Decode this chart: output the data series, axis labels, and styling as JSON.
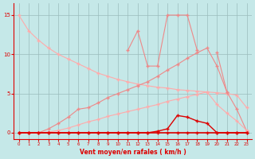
{
  "x": [
    0,
    1,
    2,
    3,
    4,
    5,
    6,
    7,
    8,
    9,
    10,
    11,
    12,
    13,
    14,
    15,
    16,
    17,
    18,
    19,
    20,
    21,
    22,
    23
  ],
  "line_top": [
    15,
    13,
    11.8,
    10.8,
    10.0,
    9.4,
    8.8,
    8.2,
    7.6,
    7.2,
    6.8,
    6.5,
    6.2,
    6.0,
    5.8,
    5.7,
    5.5,
    5.4,
    5.3,
    5.2,
    5.1,
    5.0,
    4.8,
    3.2
  ],
  "line_spiky": [
    null,
    null,
    null,
    null,
    null,
    null,
    null,
    null,
    null,
    null,
    null,
    10.5,
    13.0,
    8.5,
    8.5,
    15.0,
    15.0,
    15.0,
    10.5,
    null,
    10.2,
    5.2,
    null,
    null
  ],
  "line_inc1": [
    0,
    0,
    0,
    0.5,
    1.2,
    2.0,
    3.0,
    3.2,
    3.8,
    4.5,
    5.0,
    5.5,
    6.0,
    6.5,
    7.2,
    8.0,
    8.7,
    9.5,
    10.2,
    10.8,
    8.5,
    5.2,
    3.0,
    0.2
  ],
  "line_inc2": [
    0,
    0,
    0,
    0.1,
    0.3,
    0.6,
    1.0,
    1.4,
    1.7,
    2.1,
    2.4,
    2.7,
    3.0,
    3.3,
    3.6,
    4.0,
    4.3,
    4.6,
    4.9,
    5.2,
    3.6,
    2.5,
    1.5,
    0.3
  ],
  "line_near_zero": [
    0,
    0,
    0,
    0,
    0,
    0,
    0,
    0,
    0,
    0,
    0,
    0,
    0,
    0,
    0.2,
    0.5,
    2.2,
    2.0,
    1.5,
    1.2,
    0,
    0,
    0,
    0
  ],
  "line_zero": [
    0,
    0,
    0,
    0,
    0,
    0,
    0,
    0,
    0,
    0,
    0,
    0,
    0,
    0,
    0,
    0,
    0,
    0,
    0,
    0,
    0,
    0,
    0,
    0
  ],
  "background_color": "#c5e8e8",
  "grid_color": "#9bbcbc",
  "line_color_dark": "#dd0000",
  "line_color_mid": "#ee8888",
  "line_color_light": "#ffaaaa",
  "xlabel": "Vent moyen/en rafales ( km/h )",
  "ylabel_ticks": [
    0,
    5,
    10,
    15
  ],
  "xlim": [
    -0.5,
    23.5
  ],
  "ylim": [
    -0.8,
    16.5
  ]
}
